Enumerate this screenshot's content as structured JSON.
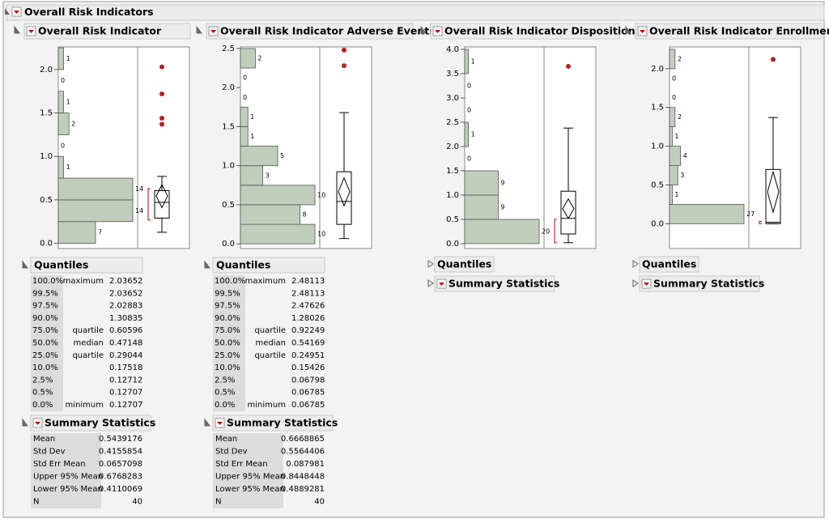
{
  "title": "Overall Risk Indicators",
  "panels": [
    {
      "title": "Overall Risk Indicator",
      "histogram": {
        "bins": [
          0,
          0.25,
          0.5,
          0.75,
          1.0,
          1.25,
          1.5,
          1.75,
          2.0,
          2.25
        ],
        "counts": [
          7,
          14,
          14,
          1,
          0,
          2,
          1,
          0,
          1
        ],
        "ylim": [
          -0.06,
          2.26
        ],
        "yticks": [
          {
            "value": 0,
            "label": "0.0"
          },
          {
            "value": 0.5,
            "label": "0.5"
          },
          {
            "value": 1,
            "label": "1.0"
          },
          {
            "value": 1.5,
            "label": "1.5"
          },
          {
            "value": 2,
            "label": "2.0"
          }
        ]
      },
      "box": {
        "whisker_low": 0.12707,
        "q1": 0.29044,
        "median": 0.47148,
        "q3": 0.60596,
        "whisker_high": 0.77,
        "mean": 0.5439176,
        "mean_ci": [
          0.4110069,
          0.6768283
        ],
        "shortest_half": [
          0.27,
          0.63
        ],
        "outliers": [
          1.37,
          1.44,
          1.72,
          2.03
        ]
      },
      "quantiles": {
        "title": "Quantiles",
        "rows": [
          {
            "pct": "100.0%",
            "label": "maximum",
            "value": "2.03652"
          },
          {
            "pct": "99.5%",
            "value": "2.03652"
          },
          {
            "pct": "97.5%",
            "value": "2.02883"
          },
          {
            "pct": "90.0%",
            "value": "1.30835"
          },
          {
            "pct": "75.0%",
            "label": "quartile",
            "value": "0.60596"
          },
          {
            "pct": "50.0%",
            "label": "median",
            "value": "0.47148"
          },
          {
            "pct": "25.0%",
            "label": "quartile",
            "value": "0.29044"
          },
          {
            "pct": "10.0%",
            "value": "0.17518"
          },
          {
            "pct": "2.5%",
            "value": "0.12712"
          },
          {
            "pct": "0.5%",
            "value": "0.12707"
          },
          {
            "pct": "0.0%",
            "label": "minimum",
            "value": "0.12707"
          }
        ]
      },
      "summary": {
        "title": "Summary Statistics",
        "rows": [
          [
            "Mean",
            "0.5439176"
          ],
          [
            "Std Dev",
            "0.4155854"
          ],
          [
            "Std Err Mean",
            "0.0657098"
          ],
          [
            "Upper 95% Mean",
            "0.6768283"
          ],
          [
            "Lower 95% Mean",
            "0.4110069"
          ],
          [
            "N",
            "40"
          ]
        ]
      }
    },
    {
      "title": "Overall Risk Indicator Adverse Events",
      "histogram": {
        "bins": [
          0,
          0.25,
          0.5,
          0.75,
          1.0,
          1.25,
          1.5,
          1.75,
          2.0,
          2.25,
          2.5
        ],
        "counts": [
          10,
          8,
          10,
          3,
          5,
          1,
          1,
          0,
          0,
          2
        ],
        "ylim": [
          -0.06,
          2.52
        ],
        "yticks": [
          {
            "value": 0,
            "label": "0.0"
          },
          {
            "value": 0.5,
            "label": "0.5"
          },
          {
            "value": 1,
            "label": "1.0"
          },
          {
            "value": 1.5,
            "label": "1.5"
          },
          {
            "value": 2,
            "label": "2.0"
          },
          {
            "value": 2.5,
            "label": "2.5"
          }
        ]
      },
      "box": {
        "whisker_low": 0.06785,
        "q1": 0.24951,
        "median": 0.54169,
        "q3": 0.92249,
        "whisker_high": 1.68,
        "mean": 0.6668865,
        "mean_ci": [
          0.4889281,
          0.8448448
        ],
        "outliers": [
          2.28,
          2.48
        ]
      },
      "quantiles": {
        "title": "Quantiles",
        "rows": [
          {
            "pct": "100.0%",
            "label": "maximum",
            "value": "2.48113"
          },
          {
            "pct": "99.5%",
            "value": "2.48113"
          },
          {
            "pct": "97.5%",
            "value": "2.47626"
          },
          {
            "pct": "90.0%",
            "value": "1.28026"
          },
          {
            "pct": "75.0%",
            "label": "quartile",
            "value": "0.92249"
          },
          {
            "pct": "50.0%",
            "label": "median",
            "value": "0.54169"
          },
          {
            "pct": "25.0%",
            "label": "quartile",
            "value": "0.24951"
          },
          {
            "pct": "10.0%",
            "value": "0.15426"
          },
          {
            "pct": "2.5%",
            "value": "0.06798"
          },
          {
            "pct": "0.5%",
            "value": "0.06785"
          },
          {
            "pct": "0.0%",
            "label": "minimum",
            "value": "0.06785"
          }
        ]
      },
      "summary": {
        "title": "Summary Statistics",
        "rows": [
          [
            "Mean",
            "0.6668865"
          ],
          [
            "Std Dev",
            "0.5564406"
          ],
          [
            "Std Err Mean",
            "0.087981"
          ],
          [
            "Upper 95% Mean",
            "0.8448448"
          ],
          [
            "Lower 95% Mean",
            "0.4889281"
          ],
          [
            "N",
            "40"
          ]
        ]
      }
    },
    {
      "title": "Overall Risk Indicator Disposition",
      "histogram": {
        "bins": [
          0,
          0.5,
          1.0,
          1.5,
          2.0,
          2.5,
          3.0,
          3.5,
          4.0
        ],
        "counts": [
          20,
          9,
          9,
          0,
          1,
          0,
          0,
          1
        ],
        "ylim": [
          -0.1,
          4.05
        ],
        "yticks": [
          {
            "value": 0,
            "label": "0.0"
          },
          {
            "value": 0.5,
            "label": "0.5"
          },
          {
            "value": 1,
            "label": "1.0"
          },
          {
            "value": 1.5,
            "label": "1.5"
          },
          {
            "value": 2,
            "label": "2.0"
          },
          {
            "value": 2.5,
            "label": "2.5"
          },
          {
            "value": 3,
            "label": "3.0"
          },
          {
            "value": 3.5,
            "label": "3.5"
          },
          {
            "value": 4,
            "label": "4.0"
          }
        ]
      },
      "box": {
        "whisker_low": 0.02,
        "q1": 0.2,
        "median": 0.52,
        "q3": 1.08,
        "whisker_high": 2.38,
        "mean": 0.72,
        "mean_ci": [
          0.52,
          0.92
        ],
        "shortest_half": [
          0.02,
          0.5
        ],
        "outliers": [
          3.65
        ]
      },
      "quantiles": {
        "title": "Quantiles",
        "collapsed": true
      },
      "summary": {
        "title": "Summary Statistics",
        "collapsed": true
      }
    },
    {
      "title": "Overall Risk Indicator Enrollment",
      "histogram": {
        "bins": [
          0,
          0.25,
          0.5,
          0.75,
          1.0,
          1.25,
          1.5,
          1.75,
          2.0,
          2.25
        ],
        "counts": [
          27,
          1,
          3,
          4,
          1,
          2,
          0,
          0,
          2
        ],
        "ylim": [
          -0.32,
          2.28
        ],
        "yticks": [
          {
            "value": 0,
            "label": "0.0"
          },
          {
            "value": 0.5,
            "label": "0.5"
          },
          {
            "value": 1,
            "label": "1.0"
          },
          {
            "value": 1.5,
            "label": "1.5"
          },
          {
            "value": 2,
            "label": "2.0"
          }
        ]
      },
      "box": {
        "whisker_low": 0,
        "q1": 0,
        "median": 0.02,
        "q3": 0.7,
        "whisker_high": 1.37,
        "mean": 0.41,
        "mean_ci": [
          0.15,
          0.67
        ],
        "shortest_half": [
          0,
          0.03
        ],
        "outliers": [
          2.12
        ]
      },
      "quantiles": {
        "title": "Quantiles",
        "collapsed": true
      },
      "summary": {
        "title": "Summary Statistics",
        "collapsed": true
      }
    }
  ]
}
